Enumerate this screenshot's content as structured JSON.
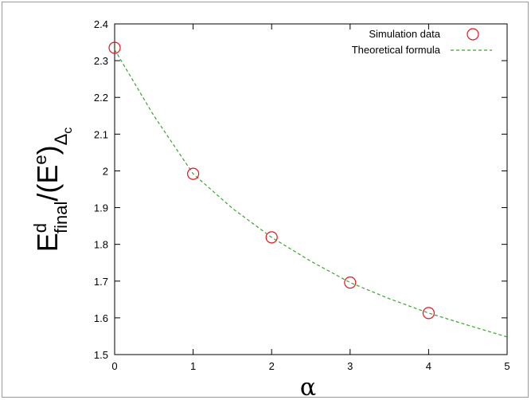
{
  "chart_data": {
    "type": "scatter",
    "xlabel": "α",
    "ylabel": {
      "E": "E",
      "sup_d": "d",
      "sub_final": "final",
      "slash_paren_E": "/(E",
      "sup_e": "e",
      "close_paren": ")",
      "sub_delta": "Δ",
      "sub_c": "c"
    },
    "xlim": [
      0,
      5
    ],
    "ylim": [
      1.5,
      2.4
    ],
    "x_ticks": [
      "0",
      "1",
      "2",
      "3",
      "4",
      "5"
    ],
    "y_ticks": [
      "1.5",
      "1.6",
      "1.7",
      "1.8",
      "1.9",
      "2",
      "2.1",
      "2.2",
      "2.3",
      "2.4"
    ],
    "grid": false,
    "legend_position": "top-right",
    "series": [
      {
        "name": "Simulation data",
        "style": "open-circles",
        "color": "#e8141c",
        "x": [
          0,
          1,
          2,
          3,
          4
        ],
        "y": [
          2.335,
          1.992,
          1.819,
          1.696,
          1.613
        ]
      },
      {
        "name": "Theoretical formula",
        "style": "dashed-line",
        "color": "#3aa52a",
        "x": [
          0,
          0.5,
          1,
          1.5,
          2,
          2.5,
          3,
          3.5,
          4,
          4.5,
          5
        ],
        "y": [
          2.33,
          2.15,
          1.992,
          1.898,
          1.819,
          1.754,
          1.696,
          1.652,
          1.613,
          1.58,
          1.548
        ]
      }
    ]
  }
}
